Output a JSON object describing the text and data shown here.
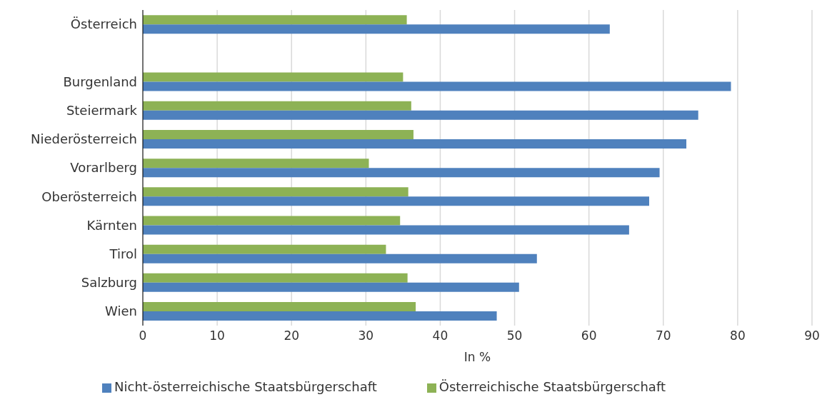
{
  "chart_data": {
    "type": "bar",
    "orientation": "horizontal",
    "categories": [
      "Österreich",
      null,
      "Burgenland",
      "Steiermark",
      "Niederösterreich",
      "Vorarlberg",
      "Oberösterreich",
      "Kärnten",
      "Tirol",
      "Salzburg",
      "Wien"
    ],
    "series": [
      {
        "name": "Österreichische Staatsbürgerschaft",
        "color": "#8db255",
        "values": [
          35.5,
          null,
          35.0,
          36.1,
          36.4,
          30.4,
          35.7,
          34.6,
          32.7,
          35.6,
          36.7
        ]
      },
      {
        "name": "Nicht-österreichische Staatsbürgerschaft",
        "color": "#4f81bd",
        "values": [
          62.8,
          null,
          79.1,
          74.7,
          73.1,
          69.5,
          68.1,
          65.4,
          53.0,
          50.6,
          47.6
        ]
      }
    ],
    "xlabel": "In %",
    "xlim": [
      0,
      90
    ],
    "xticks": [
      0,
      10,
      20,
      30,
      40,
      50,
      60,
      70,
      80,
      90
    ],
    "grid": "x",
    "legend": "bottom"
  }
}
